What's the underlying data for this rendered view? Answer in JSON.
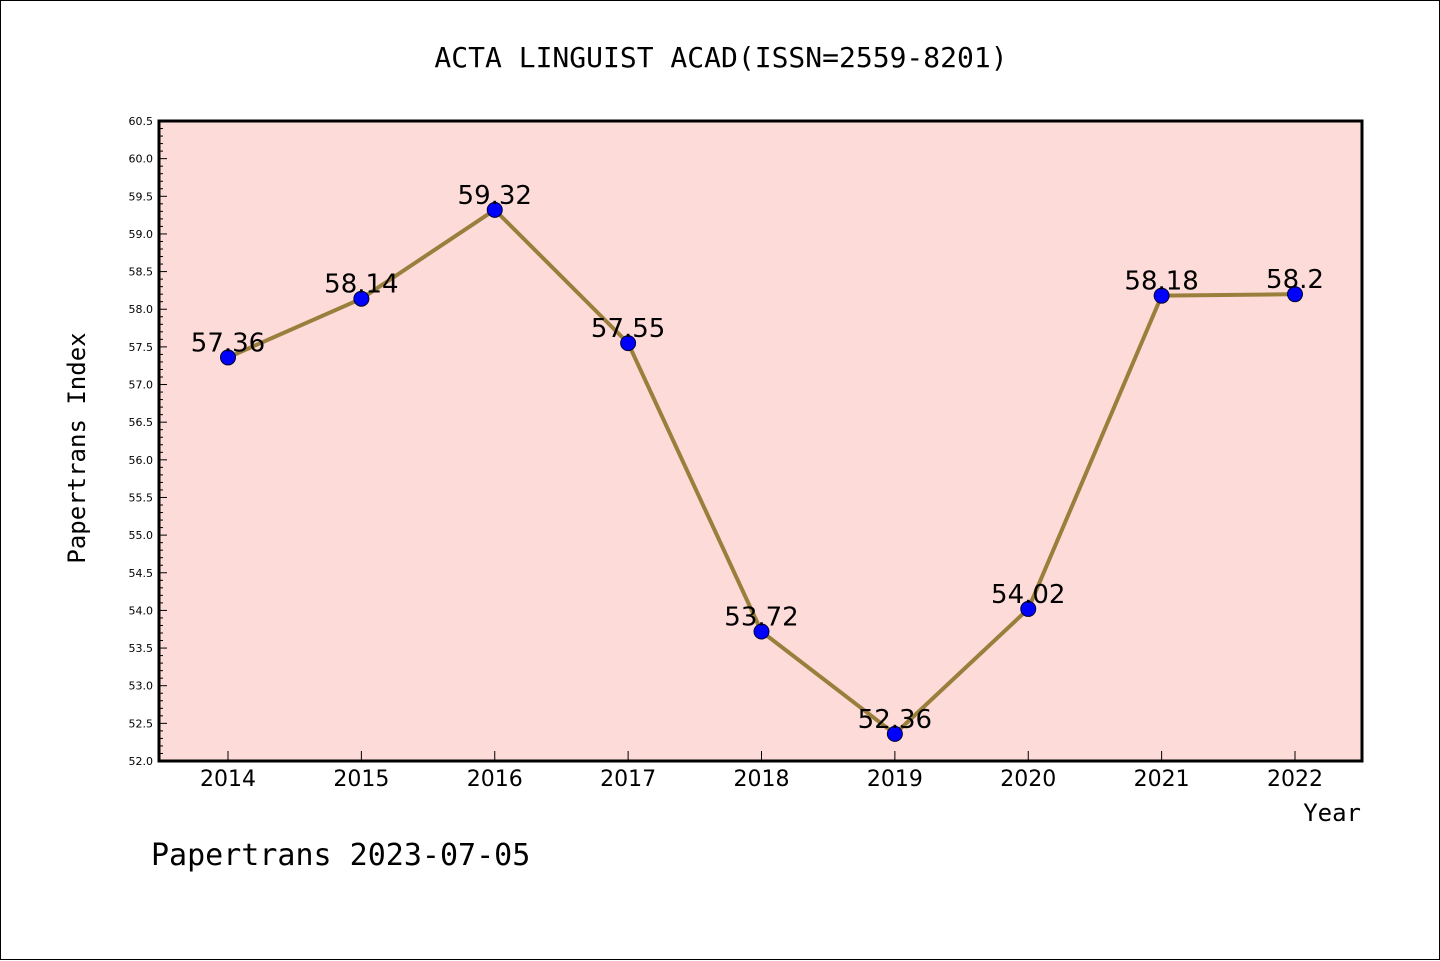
{
  "chart_data": {
    "type": "line",
    "title": "ACTA LINGUIST ACAD(ISSN=2559-8201)",
    "xlabel": "Year",
    "ylabel": "Papertrans Index",
    "categories": [
      "2014",
      "2015",
      "2016",
      "2017",
      "2018",
      "2019",
      "2020",
      "2021",
      "2022"
    ],
    "values": [
      57.36,
      58.14,
      59.32,
      57.55,
      53.72,
      52.36,
      54.02,
      58.18,
      58.2
    ],
    "data_labels": [
      "57.36",
      "58.14",
      "59.32",
      "57.55",
      "53.72",
      "52.36",
      "54.02",
      "58.18",
      "58.2"
    ],
    "ylim": [
      52.0,
      60.5
    ],
    "yticks": [
      "52.0",
      "52.5",
      "53.0",
      "53.5",
      "54.0",
      "54.5",
      "55.0",
      "55.5",
      "56.0",
      "56.5",
      "57.0",
      "57.5",
      "58.0",
      "58.5",
      "59.0",
      "59.5",
      "60.0",
      "60.5"
    ],
    "grid": false,
    "colors": {
      "plot_background": "#fddbd9",
      "line": "#9a7f3c",
      "marker": "#0000ff"
    }
  },
  "footer": "Papertrans 2023-07-05"
}
